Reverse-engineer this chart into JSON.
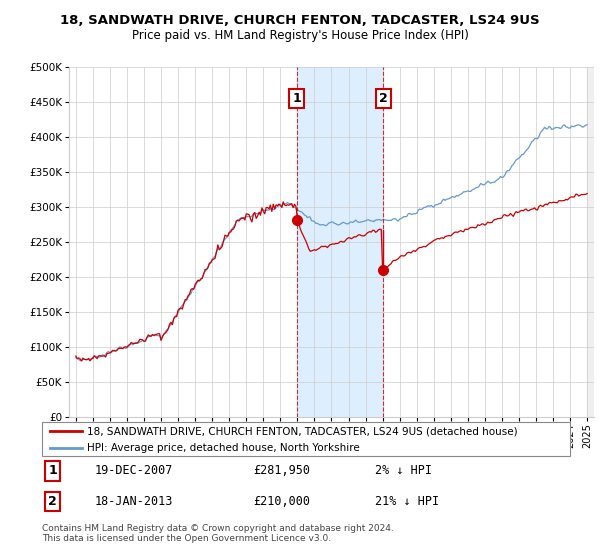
{
  "title": "18, SANDWATH DRIVE, CHURCH FENTON, TADCASTER, LS24 9US",
  "subtitle": "Price paid vs. HM Land Registry's House Price Index (HPI)",
  "ylim": [
    0,
    500000
  ],
  "yticks": [
    0,
    50000,
    100000,
    150000,
    200000,
    250000,
    300000,
    350000,
    400000,
    450000,
    500000
  ],
  "ytick_labels": [
    "£0",
    "£50K",
    "£100K",
    "£150K",
    "£200K",
    "£250K",
    "£300K",
    "£350K",
    "£400K",
    "£450K",
    "£500K"
  ],
  "xlim_start": 1994.6,
  "xlim_end": 2025.4,
  "sale1_year": 2007.97,
  "sale1_price": 281950,
  "sale1_date": "19-DEC-2007",
  "sale1_hpi_diff": "2% ↓ HPI",
  "sale2_year": 2013.04,
  "sale2_price": 210000,
  "sale2_date": "18-JAN-2013",
  "sale2_hpi_diff": "21% ↓ HPI",
  "legend_line1": "18, SANDWATH DRIVE, CHURCH FENTON, TADCASTER, LS24 9US (detached house)",
  "legend_line2": "HPI: Average price, detached house, North Yorkshire",
  "footer": "Contains HM Land Registry data © Crown copyright and database right 2024.\nThis data is licensed under the Open Government Licence v3.0.",
  "line_color_price": "#cc0000",
  "line_color_hpi": "#6699cc",
  "shade_color": "#ddeeff",
  "vline_color": "#cc0000",
  "bg_color": "#ffffff",
  "grid_color": "#cccccc",
  "hatch_color": "#aaaaaa"
}
